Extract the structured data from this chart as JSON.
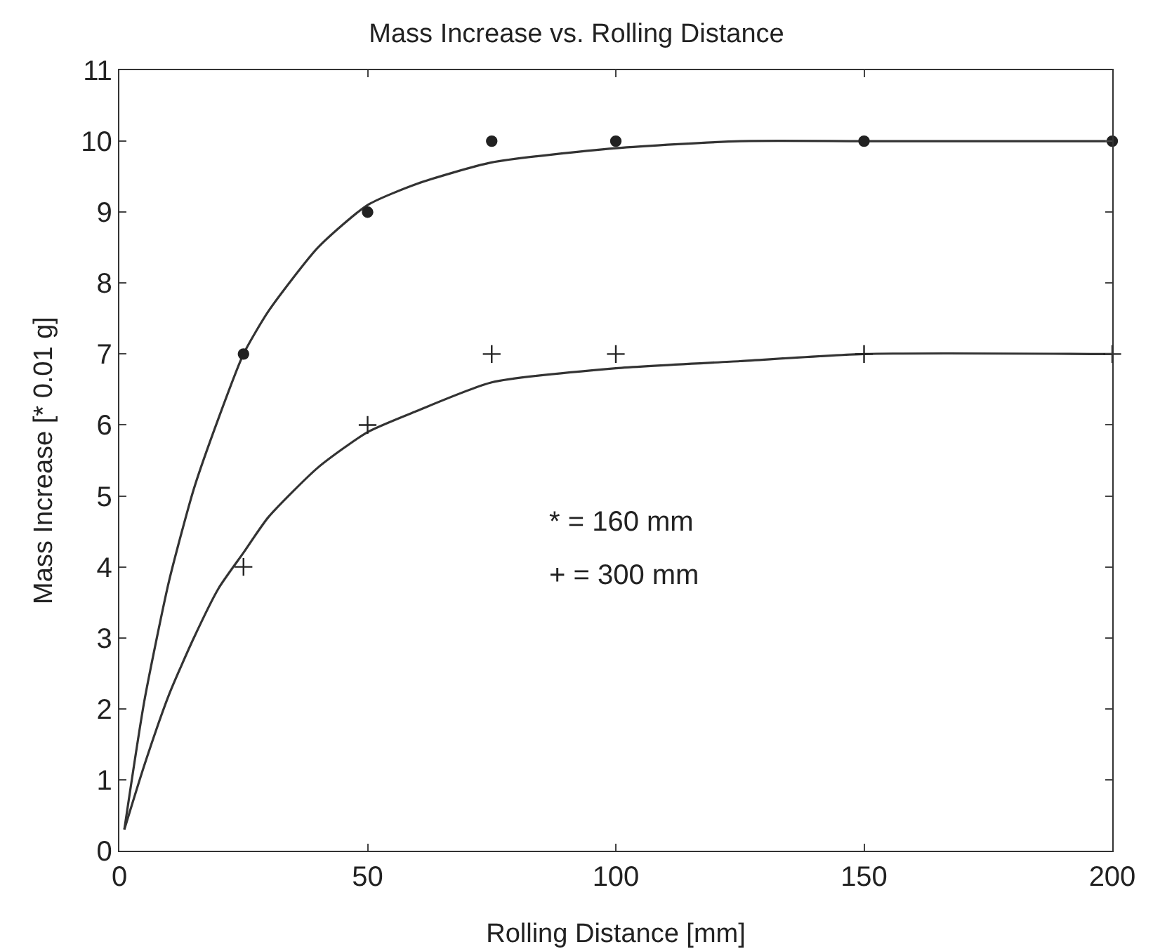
{
  "chart_data": {
    "type": "scatter",
    "title": "Mass Increase vs. Rolling Distance",
    "xlabel": "Rolling Distance [mm]",
    "ylabel": "Mass Increase [* 0.01 g]",
    "xlim": [
      0,
      200
    ],
    "xticks": [
      0,
      50,
      100,
      150,
      200
    ],
    "ylim": [
      0,
      11
    ],
    "yticks": [
      0,
      1,
      2,
      3,
      4,
      5,
      6,
      7,
      8,
      9,
      10,
      11
    ],
    "grid": false,
    "annotations": [
      "* = 160 mm",
      "+ = 300 mm"
    ],
    "series": [
      {
        "marker": "circle",
        "color": "#222222",
        "x": [
          25,
          50,
          75,
          100,
          150,
          200
        ],
        "values": [
          7,
          9,
          10,
          10,
          10,
          10
        ]
      },
      {
        "marker": "cross",
        "color": "#222222",
        "x": [
          25,
          50,
          75,
          100,
          150,
          200
        ],
        "values": [
          4,
          6,
          7,
          7,
          7,
          7
        ]
      },
      {
        "type": "line",
        "marker": "none",
        "line_style": "solid",
        "color": "#333333",
        "x": [
          1,
          5,
          10,
          15,
          20,
          25,
          30,
          40,
          50,
          60,
          75,
          100,
          125,
          150,
          200
        ],
        "values": [
          0.3,
          2.1,
          3.8,
          5.1,
          6.1,
          7.0,
          7.6,
          8.5,
          9.1,
          9.4,
          9.7,
          9.9,
          10,
          10,
          10
        ]
      },
      {
        "type": "line",
        "marker": "none",
        "line_style": "solid",
        "color": "#333333",
        "x": [
          1,
          5,
          10,
          15,
          20,
          25,
          30,
          40,
          50,
          60,
          75,
          100,
          125,
          150,
          200
        ],
        "values": [
          0.3,
          1.2,
          2.2,
          3.0,
          3.7,
          4.2,
          4.7,
          5.4,
          5.9,
          6.2,
          6.6,
          6.8,
          6.9,
          7.0,
          7.0
        ]
      }
    ]
  }
}
